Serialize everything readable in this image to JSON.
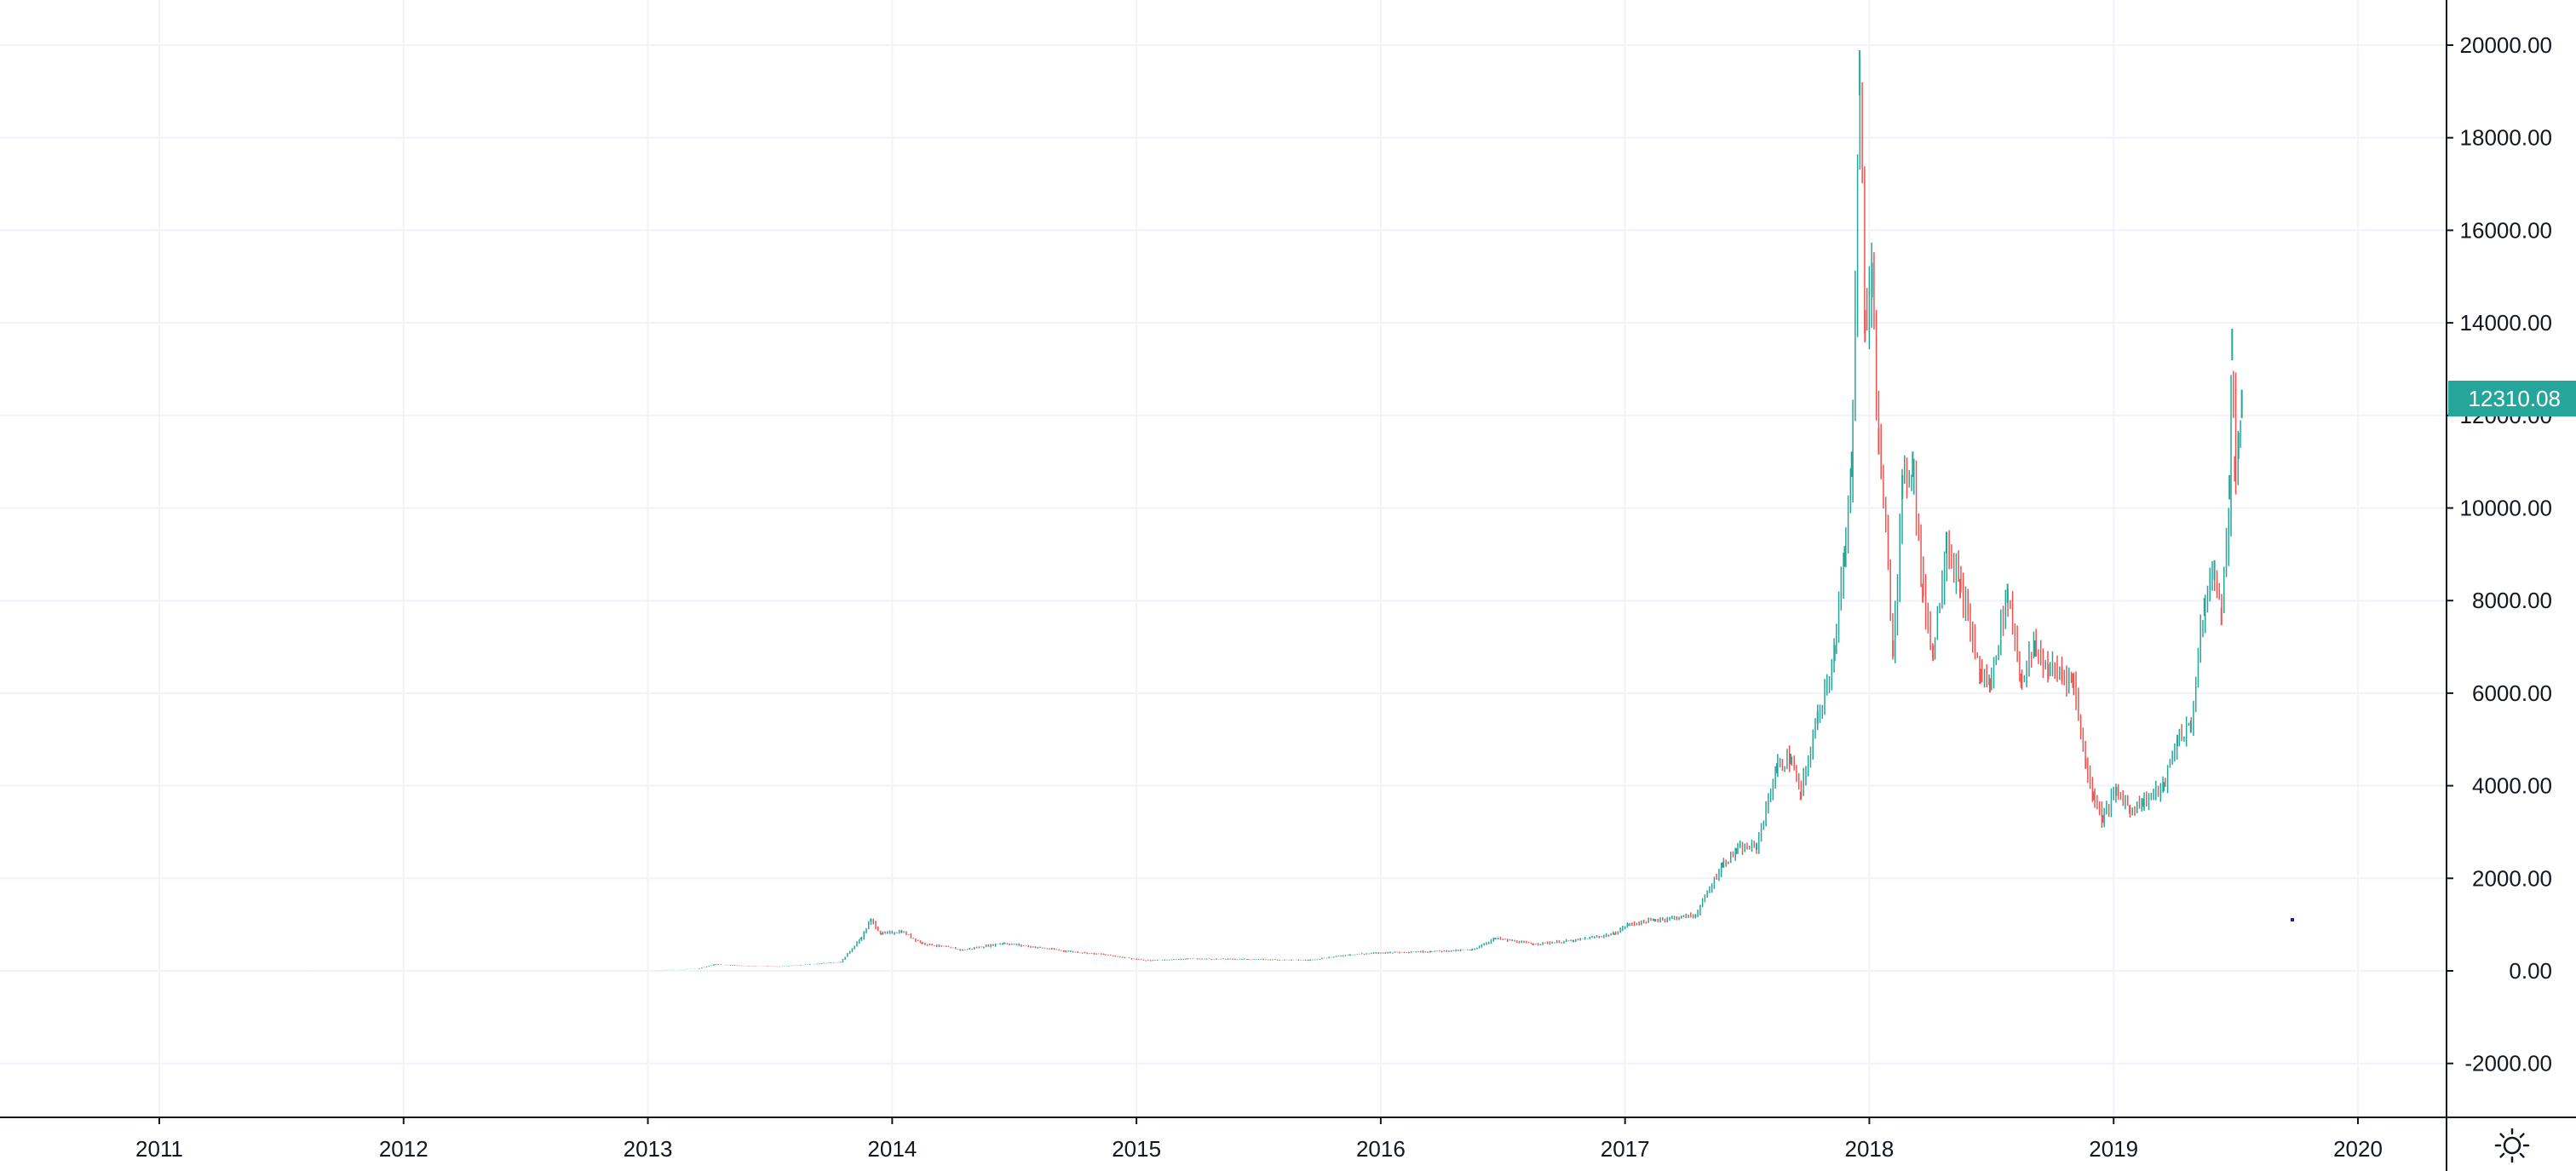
{
  "chart_data": {
    "type": "candlestick",
    "x_axis": {
      "type": "time",
      "range": [
        "2010-07",
        "2020-07"
      ],
      "tick_labels": [
        "2011",
        "2012",
        "2013",
        "2014",
        "2015",
        "2016",
        "2017",
        "2018",
        "2019",
        "2020"
      ]
    },
    "y_axis": {
      "position": "right",
      "range": [
        -3000,
        21000
      ],
      "tick_labels": [
        "20000.00",
        "18000.00",
        "16000.00",
        "14000.00",
        "12000.00",
        "10000.00",
        "8000.00",
        "6000.00",
        "4000.00",
        "2000.00",
        "0.00",
        "-2000.00"
      ],
      "tick_values": [
        20000,
        18000,
        16000,
        14000,
        12000,
        10000,
        8000,
        6000,
        4000,
        2000,
        0,
        -2000
      ]
    },
    "grid": true,
    "last_price": 12310.08,
    "last_price_label": "12310.08",
    "colors": {
      "up": "#26a69a",
      "down": "#ef5350",
      "grid": "#f0f3fa",
      "axis": "#131722",
      "badge": "#26a69a"
    },
    "series": [
      {
        "x": [
          "2010-07-15",
          "2011-01-15",
          "2011-07-15",
          "2012-01-15",
          "2012-07-15",
          "2013-01-15",
          "2013-03-15",
          "2013-04-10",
          "2013-05-15",
          "2013-07-15",
          "2013-10-15",
          "2013-11-15",
          "2013-11-30",
          "2013-12-15",
          "2014-01-15",
          "2014-02-15",
          "2014-04-15",
          "2014-06-15",
          "2014-09-15",
          "2014-11-15",
          "2015-01-15",
          "2015-03-15",
          "2015-06-15",
          "2015-09-15",
          "2015-11-15",
          "2016-01-15",
          "2016-03-15",
          "2016-05-15",
          "2016-06-20",
          "2016-08-15",
          "2016-10-15",
          "2016-12-15",
          "2017-01-05",
          "2017-02-15",
          "2017-04-15",
          "2017-05-25",
          "2017-06-15",
          "2017-07-15",
          "2017-08-15",
          "2017-09-05",
          "2017-09-20",
          "2017-10-15",
          "2017-11-10",
          "2017-11-25",
          "2017-12-05",
          "2017-12-17",
          "2017-12-25",
          "2018-01-05",
          "2018-01-15",
          "2018-02-06",
          "2018-02-20",
          "2018-03-05",
          "2018-03-20",
          "2018-04-05",
          "2018-04-25",
          "2018-05-15",
          "2018-06-15",
          "2018-06-29",
          "2018-07-25",
          "2018-08-15",
          "2018-09-05",
          "2018-09-25",
          "2018-10-15",
          "2018-11-01",
          "2018-11-20",
          "2018-12-01",
          "2018-12-15",
          "2019-01-05",
          "2019-01-25",
          "2019-02-15",
          "2019-03-15",
          "2019-04-05",
          "2019-04-25",
          "2019-05-15",
          "2019-05-30",
          "2019-06-10",
          "2019-06-22",
          "2019-06-26",
          "2019-06-30",
          "2019-07-05",
          "2019-07-10"
        ],
        "close": [
          0.07,
          0.3,
          14,
          6,
          8,
          13,
          47,
          140,
          110,
          90,
          190,
          700,
          1100,
          800,
          850,
          600,
          450,
          600,
          430,
          350,
          220,
          260,
          250,
          230,
          350,
          400,
          420,
          450,
          700,
          580,
          650,
          800,
          1000,
          1100,
          1200,
          2300,
          2600,
          2700,
          4400,
          4600,
          3800,
          5500,
          6900,
          9000,
          11000,
          19500,
          14000,
          15000,
          11500,
          7000,
          10500,
          11000,
          8200,
          6900,
          9300,
          8300,
          6400,
          6200,
          8200,
          6300,
          7000,
          6500,
          6450,
          6300,
          4500,
          3800,
          3300,
          3900,
          3500,
          3650,
          4000,
          5000,
          5300,
          7900,
          8700,
          7700,
          10500,
          13600,
          10900,
          11400,
          12310.08
        ]
      }
    ]
  },
  "settings": {
    "icon": "gear-icon"
  }
}
